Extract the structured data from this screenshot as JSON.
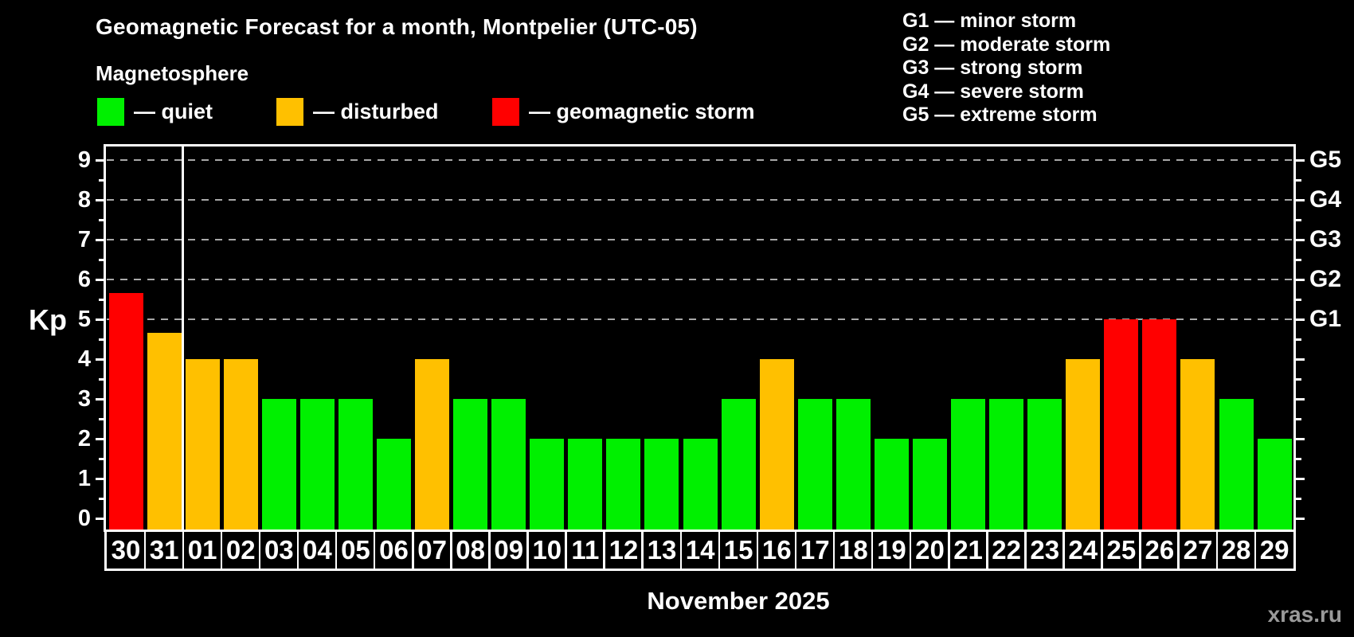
{
  "title": "Geomagnetic Forecast for a month, Montpelier (UTC-05)",
  "subtitle": "Magnetosphere",
  "legend": {
    "items": [
      {
        "key": "quiet",
        "label": "— quiet",
        "color": "#00f000"
      },
      {
        "key": "disturbed",
        "label": "— disturbed",
        "color": "#ffc000"
      },
      {
        "key": "storm",
        "label": "— geomagnetic storm",
        "color": "#ff0000"
      }
    ]
  },
  "storm_scale": {
    "lines": [
      "G1 — minor storm",
      "G2 — moderate storm",
      "G3 — strong storm",
      "G4 — severe storm",
      "G5 — extreme storm"
    ]
  },
  "watermark": "xras.ru",
  "chart_data": {
    "type": "bar",
    "title": "Geomagnetic Forecast for a month, Montpelier (UTC-05)",
    "xlabel": "November 2025",
    "ylabel": "Kp",
    "ylim": [
      0,
      9.5
    ],
    "grid": "dashed horizontal at Kp 5-9 (G1-G5 levels)",
    "legend_position": "top-left",
    "yticks": [
      0,
      1,
      2,
      3,
      4,
      5,
      6,
      7,
      8,
      9
    ],
    "gridlines_kp": [
      5,
      6,
      7,
      8,
      9
    ],
    "right_axis": [
      {
        "label": "G5",
        "kp": 9
      },
      {
        "label": "G4",
        "kp": 8
      },
      {
        "label": "G3",
        "kp": 7
      },
      {
        "label": "G2",
        "kp": 6
      },
      {
        "label": "G1",
        "kp": 5
      }
    ],
    "month_separator_index": 2,
    "categories": [
      "30",
      "31",
      "01",
      "02",
      "03",
      "04",
      "05",
      "06",
      "07",
      "08",
      "09",
      "10",
      "11",
      "12",
      "13",
      "14",
      "15",
      "16",
      "17",
      "18",
      "19",
      "20",
      "21",
      "22",
      "23",
      "24",
      "25",
      "26",
      "27",
      "28",
      "29"
    ],
    "values": [
      5.67,
      4.67,
      4,
      4,
      3,
      3,
      3,
      2,
      4,
      3,
      3,
      2,
      2,
      2,
      2,
      2,
      3,
      4,
      3,
      3,
      2,
      2,
      3,
      3,
      3,
      4,
      5,
      5,
      4,
      3,
      2
    ],
    "statuses": [
      "storm",
      "disturbed",
      "disturbed",
      "disturbed",
      "quiet",
      "quiet",
      "quiet",
      "quiet",
      "disturbed",
      "quiet",
      "quiet",
      "quiet",
      "quiet",
      "quiet",
      "quiet",
      "quiet",
      "quiet",
      "disturbed",
      "quiet",
      "quiet",
      "quiet",
      "quiet",
      "quiet",
      "quiet",
      "quiet",
      "disturbed",
      "storm",
      "storm",
      "disturbed",
      "quiet",
      "quiet"
    ],
    "status_colors": {
      "quiet": "#00f000",
      "disturbed": "#ffc000",
      "storm": "#ff0000"
    }
  }
}
